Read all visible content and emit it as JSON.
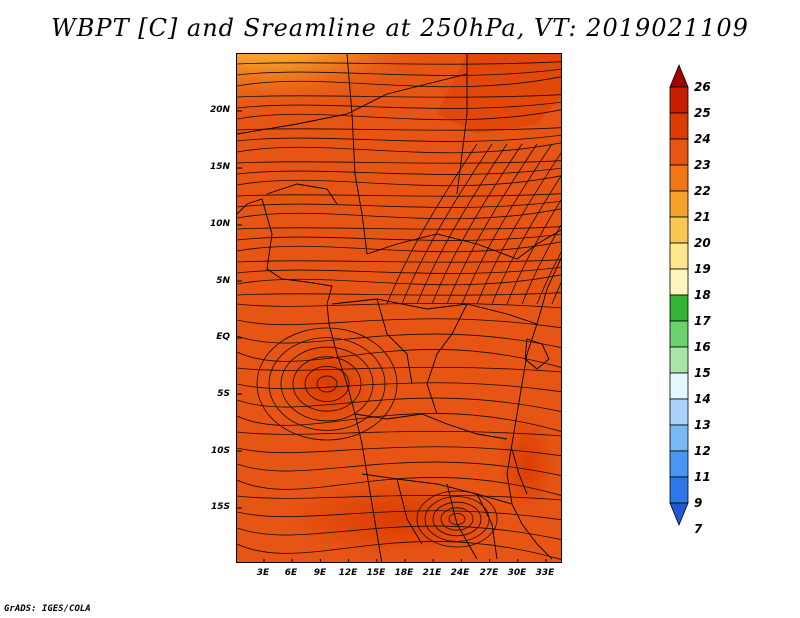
{
  "title": "WBPT [C] and Sreamline at 250hPa, VT: 2019021109",
  "lat_labels": [
    "20N",
    "15N",
    "10N",
    "5N",
    "EQ",
    "5S",
    "10S",
    "15S"
  ],
  "lon_labels": [
    "3E",
    "6E",
    "9E",
    "12E",
    "15E",
    "18E",
    "21E",
    "24E",
    "27E",
    "30E",
    "33E"
  ],
  "colorbar": {
    "labels": [
      "26",
      "25",
      "24",
      "23",
      "22",
      "21",
      "20",
      "19",
      "18",
      "17",
      "16",
      "15",
      "14",
      "13",
      "12",
      "11",
      "9",
      "7"
    ],
    "colors": [
      "#a50000",
      "#c81e00",
      "#dc3c00",
      "#e65514",
      "#f07814",
      "#f5a028",
      "#fac850",
      "#fde68c",
      "#fff5bc",
      "#34b434",
      "#6cd26c",
      "#a8e6a8",
      "#e4f8ff",
      "#aad2fa",
      "#78b9f5",
      "#4b96f0",
      "#2d78e6",
      "#1e5ad2"
    ]
  },
  "credit": "GrADS: IGES/COLA"
}
